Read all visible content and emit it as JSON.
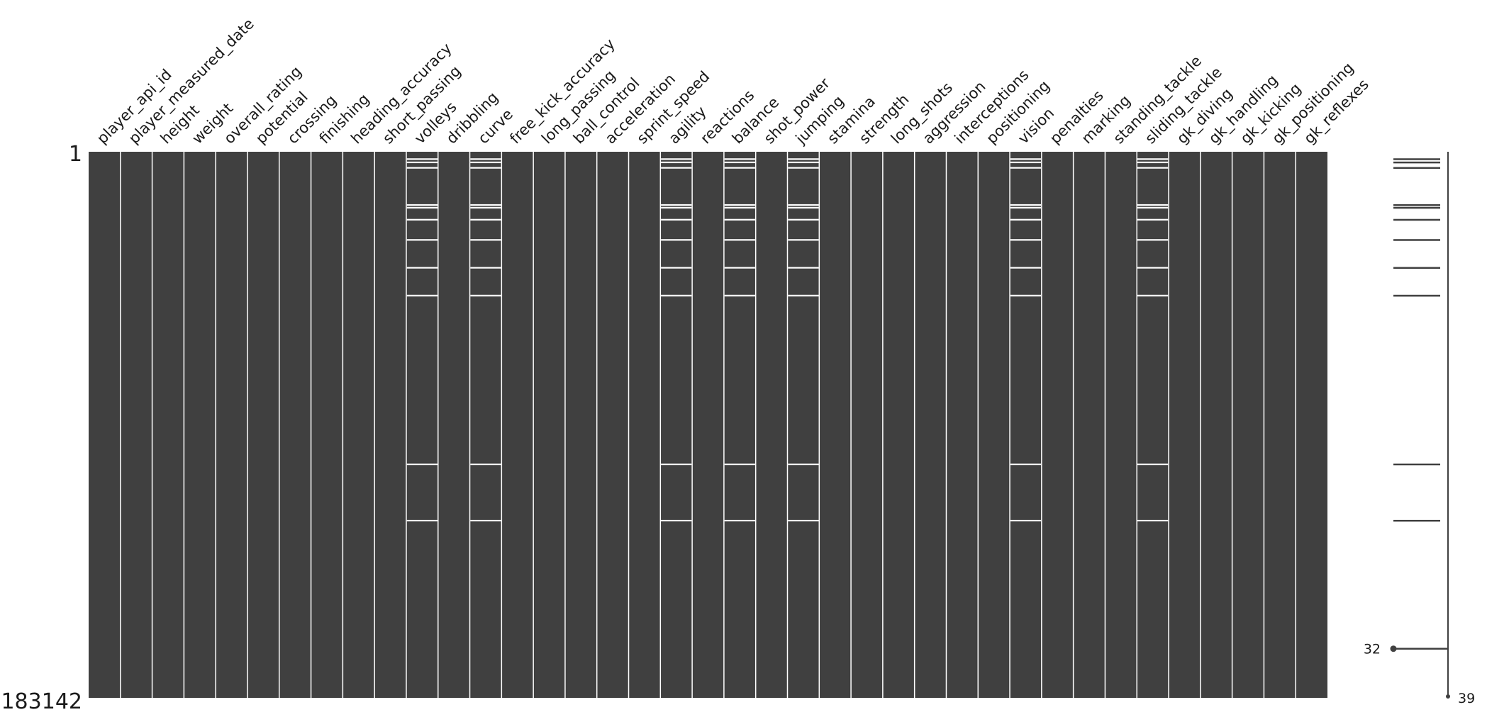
{
  "chart_data": {
    "type": "heatmap",
    "kind": "missing-value matrix",
    "title": "",
    "xlabel": "",
    "ylabel": "",
    "row_range": [
      1,
      183142
    ],
    "row_labels": {
      "first": "1",
      "last": "183142"
    },
    "columns": [
      "player_api_id",
      "player_measured_date",
      "height",
      "weight",
      "overall_rating",
      "potential",
      "crossing",
      "finishing",
      "heading_accuracy",
      "short_passing",
      "volleys",
      "dribbling",
      "curve",
      "free_kick_accuracy",
      "long_passing",
      "ball_control",
      "acceleration",
      "sprint_speed",
      "agility",
      "reactions",
      "balance",
      "shot_power",
      "jumping",
      "stamina",
      "strength",
      "long_shots",
      "aggression",
      "interceptions",
      "positioning",
      "vision",
      "penalties",
      "marking",
      "standing_tackle",
      "sliding_tackle",
      "gk_diving",
      "gk_handling",
      "gk_kicking",
      "gk_positioning",
      "gk_reflexes"
    ],
    "columns_with_missing": [
      "volleys",
      "curve",
      "agility",
      "balance",
      "jumping",
      "vision",
      "sliding_tackle"
    ],
    "missing_row_fractions": [
      0.012,
      0.018,
      0.028,
      0.096,
      0.101,
      0.123,
      0.16,
      0.211,
      0.262,
      0.571,
      0.674
    ],
    "completeness_sparkline": {
      "min_label": "32",
      "max_label": "39",
      "min_value": 32,
      "max_value": 39,
      "min_row_fraction": 0.91
    },
    "colors": {
      "present": "#404040",
      "missing": "#ffffff",
      "background": "#ffffff"
    }
  }
}
